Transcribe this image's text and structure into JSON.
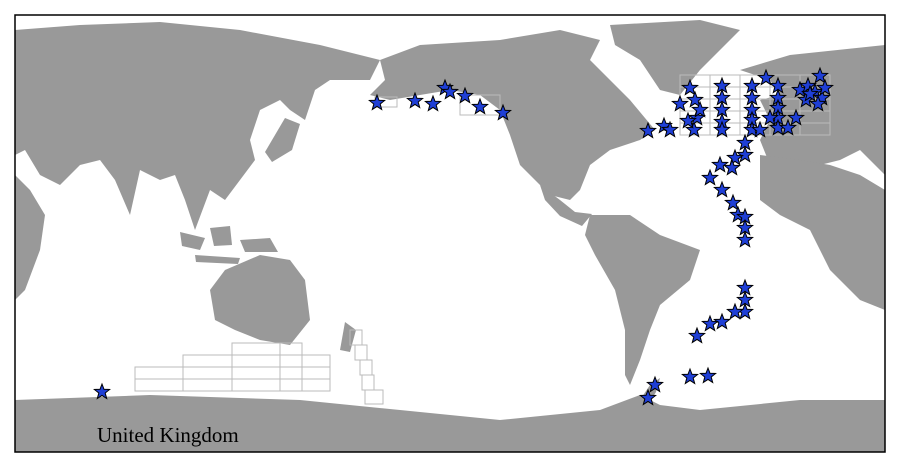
{
  "label": "United Kingdom"
}
